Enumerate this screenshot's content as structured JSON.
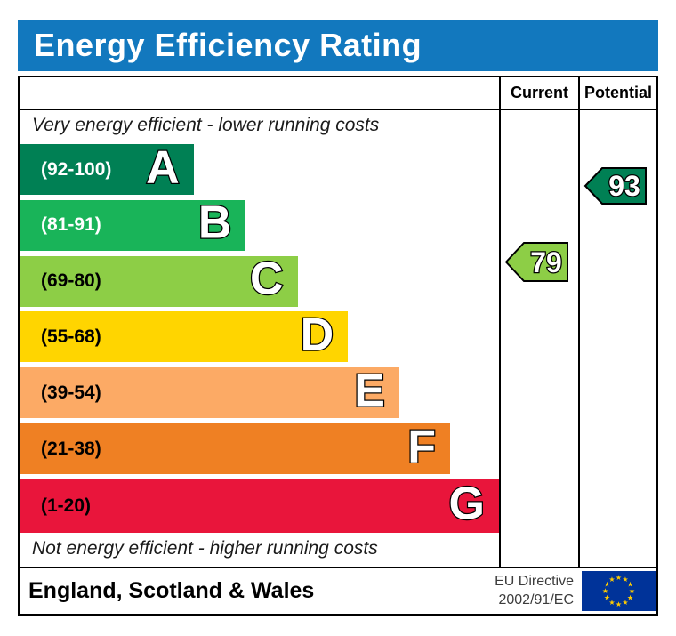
{
  "title": "Energy Efficiency Rating",
  "columns": {
    "current": "Current",
    "potential": "Potential"
  },
  "top_note": "Very energy efficient - lower running costs",
  "bottom_note": "Not energy efficient - higher running costs",
  "bands": [
    {
      "letter": "A",
      "range": "(92-100)",
      "color": "#008054",
      "label_color": "#ffffff",
      "width_pct": 36.3
    },
    {
      "letter": "B",
      "range": "(81-91)",
      "color": "#19b459",
      "label_color": "#ffffff",
      "width_pct": 47.2
    },
    {
      "letter": "C",
      "range": "(69-80)",
      "color": "#8dce46",
      "label_color": "#000000",
      "width_pct": 58.0
    },
    {
      "letter": "D",
      "range": "(55-68)",
      "color": "#ffd500",
      "label_color": "#000000",
      "width_pct": 68.5
    },
    {
      "letter": "E",
      "range": "(39-54)",
      "color": "#fcaa65",
      "label_color": "#000000",
      "width_pct": 79.2
    },
    {
      "letter": "F",
      "range": "(21-38)",
      "color": "#ef8023",
      "label_color": "#000000",
      "width_pct": 89.8
    },
    {
      "letter": "G",
      "range": "(1-20)",
      "color": "#e9153b",
      "label_color": "#000000",
      "width_pct": 100
    }
  ],
  "current_rating": {
    "value": "79",
    "color": "#8dce46"
  },
  "potential_rating": {
    "value": "93",
    "color": "#008054"
  },
  "footer": {
    "region": "England, Scotland & Wales",
    "directive_line1": "EU Directive",
    "directive_line2": "2002/91/EC"
  },
  "colors": {
    "header_blue": "#1278be",
    "eu_flag_blue": "#003399",
    "eu_star_yellow": "#ffcc00",
    "border": "#000000"
  },
  "chart_data": {
    "type": "bar",
    "orientation": "horizontal",
    "title": "Energy Efficiency Rating",
    "categories": [
      "A",
      "B",
      "C",
      "D",
      "E",
      "F",
      "G"
    ],
    "band_ranges": [
      "92-100",
      "81-91",
      "69-80",
      "55-68",
      "39-54",
      "21-38",
      "1-20"
    ],
    "band_colors": [
      "#008054",
      "#19b459",
      "#8dce46",
      "#ffd500",
      "#fcaa65",
      "#ef8023",
      "#e9153b"
    ],
    "bar_lengths_pct": [
      36,
      47,
      58,
      68,
      79,
      90,
      100
    ],
    "current": 79,
    "potential": 93,
    "value_scale": [
      1,
      100
    ],
    "annotations": [
      "Very energy efficient - lower running costs",
      "Not energy efficient - higher running costs"
    ],
    "legend_position": "none",
    "footer": "England, Scotland & Wales",
    "directive": "EU Directive 2002/91/EC"
  }
}
